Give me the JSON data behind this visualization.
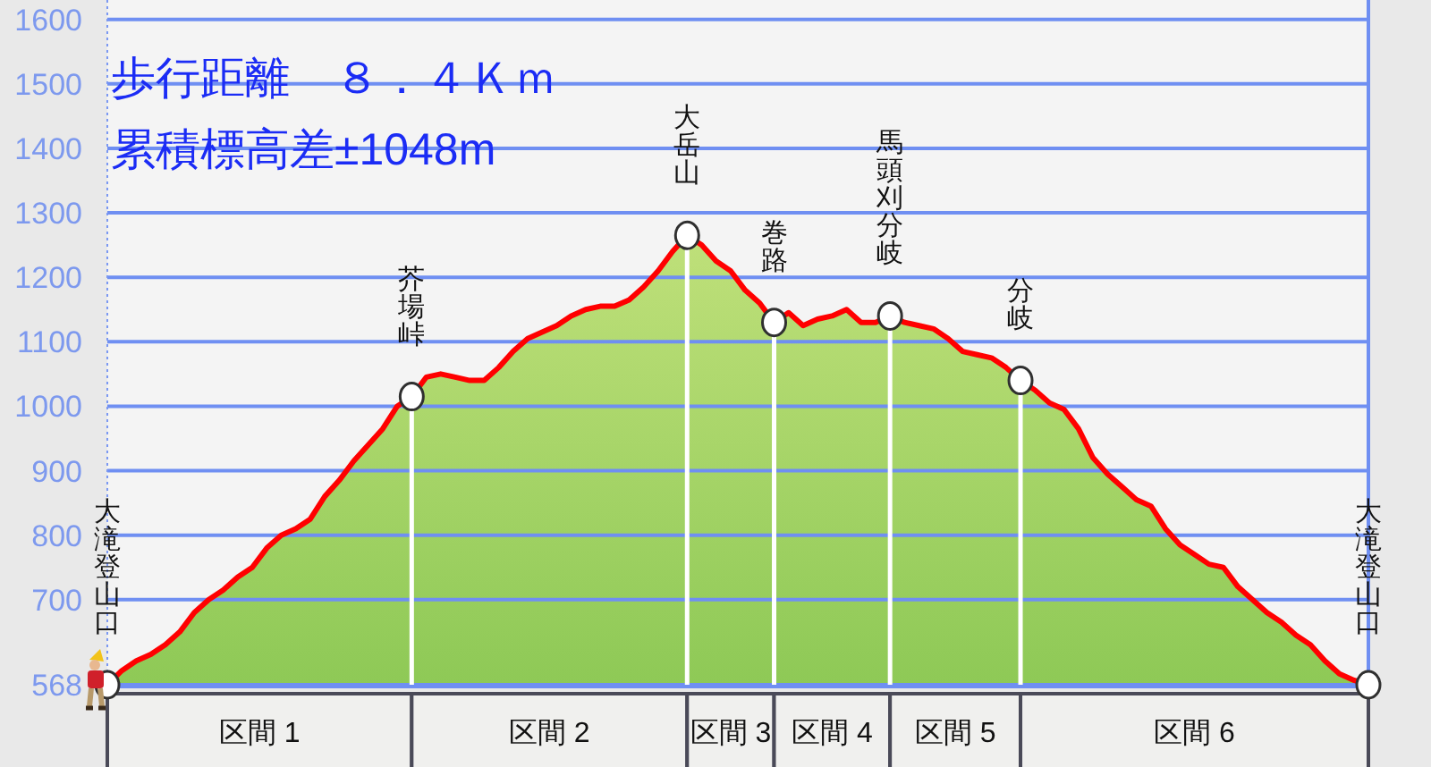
{
  "chart_data": {
    "type": "area",
    "title": "歩行距離　８．４Ｋｍ",
    "subtitle": "累積標高差±1048m",
    "annotations": [
      "区間 1",
      "区間 2",
      "区間 3",
      "区間 4",
      "区間 5",
      "区間 6"
    ],
    "categories": [
      null,
      null,
      null,
      null,
      null,
      null,
      null,
      null,
      null,
      null,
      null,
      null,
      null,
      null,
      null,
      null,
      null,
      null,
      null,
      null,
      null,
      null,
      null,
      null,
      null,
      null,
      null,
      null,
      null,
      null,
      null,
      null,
      null,
      null,
      null,
      null,
      null,
      null,
      null,
      null,
      null,
      null,
      null,
      null,
      null,
      null,
      null,
      null,
      null,
      null,
      null,
      null,
      null,
      null,
      null,
      null,
      null,
      null,
      null,
      null,
      null,
      null,
      null,
      null,
      null,
      null,
      null,
      null,
      null,
      null,
      null,
      null,
      null,
      null,
      null,
      null,
      null,
      null,
      null,
      null,
      null,
      null,
      null,
      null,
      null,
      null,
      null,
      null
    ],
    "series": [
      {
        "color": "#ff0000",
        "values": [
          568,
          590,
          605,
          615,
          630,
          650,
          680,
          700,
          715,
          735,
          750,
          780,
          800,
          810,
          825,
          860,
          885,
          915,
          940,
          965,
          1000,
          1015,
          1045,
          1050,
          1045,
          1040,
          1040,
          1060,
          1085,
          1105,
          1115,
          1125,
          1140,
          1150,
          1155,
          1155,
          1165,
          1185,
          1210,
          1240,
          1265,
          1250,
          1225,
          1210,
          1180,
          1160,
          1130,
          1145,
          1125,
          1135,
          1140,
          1150,
          1130,
          1130,
          1140,
          1130,
          1125,
          1120,
          1105,
          1085,
          1080,
          1075,
          1060,
          1040,
          1025,
          1005,
          995,
          965,
          920,
          895,
          875,
          855,
          845,
          810,
          785,
          770,
          755,
          750,
          720,
          700,
          680,
          665,
          645,
          630,
          605,
          585,
          575,
          568
        ]
      },
      {
        "type": "lollipop",
        "color": "#ffffff",
        "marker": "circle",
        "values": [
          568,
          null,
          null,
          null,
          null,
          null,
          null,
          null,
          null,
          null,
          null,
          null,
          null,
          null,
          null,
          null,
          null,
          null,
          null,
          null,
          null,
          1015,
          null,
          null,
          null,
          null,
          null,
          null,
          null,
          null,
          null,
          null,
          null,
          null,
          null,
          null,
          null,
          null,
          null,
          null,
          1265,
          null,
          null,
          null,
          null,
          null,
          1130,
          null,
          null,
          null,
          null,
          null,
          null,
          null,
          1140,
          null,
          null,
          null,
          null,
          null,
          null,
          null,
          null,
          1040,
          null,
          null,
          null,
          null,
          null,
          null,
          null,
          null,
          null,
          null,
          null,
          null,
          null,
          null,
          null,
          null,
          null,
          null,
          null,
          null,
          null,
          null,
          null,
          568
        ],
        "value_labels": [
          "大滝登山口",
          null,
          null,
          null,
          null,
          null,
          null,
          null,
          null,
          null,
          null,
          null,
          null,
          null,
          null,
          null,
          null,
          null,
          null,
          null,
          null,
          "芥場峠",
          null,
          null,
          null,
          null,
          null,
          null,
          null,
          null,
          null,
          null,
          null,
          null,
          null,
          null,
          null,
          null,
          null,
          null,
          "大岳山",
          null,
          null,
          null,
          null,
          null,
          "巻路",
          null,
          null,
          null,
          null,
          null,
          null,
          null,
          "馬頭刈分岐",
          null,
          null,
          null,
          null,
          null,
          null,
          null,
          null,
          "分岐",
          null,
          null,
          null,
          null,
          null,
          null,
          null,
          null,
          null,
          null,
          null,
          null,
          null,
          null,
          null,
          null,
          null,
          null,
          null,
          null,
          null,
          null,
          null,
          "大滝登山口"
        ]
      }
    ],
    "ylim": [
      568,
      1630
    ],
    "yticks": [
      568,
      700,
      800,
      900,
      1000,
      1100,
      1200,
      1300,
      1400,
      1500,
      1600
    ],
    "grid": "y"
  }
}
